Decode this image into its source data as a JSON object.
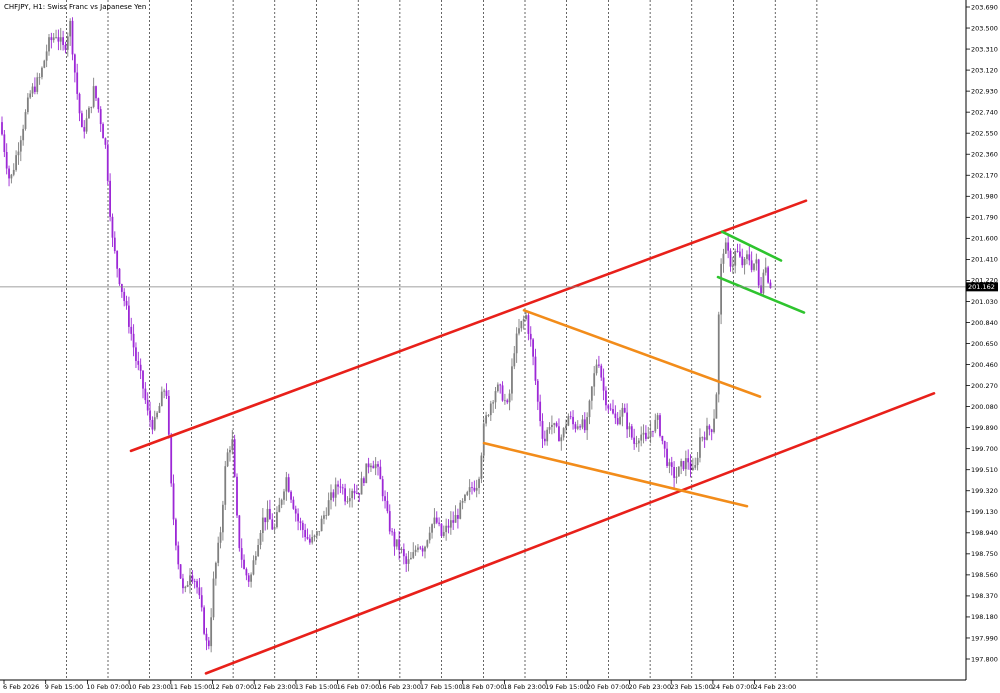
{
  "chart_data": {
    "type": "candlestick",
    "title": "CHFJPY, H1:  Swiss Franc vs Japanese Yen",
    "symbol": "CHFJPY",
    "timeframe": "H1",
    "description": "Swiss Franc vs Japanese Yen",
    "ylim": [
      197.65,
      203.74
    ],
    "y_ticks": [
      "203.690",
      "203.500",
      "203.310",
      "203.120",
      "202.930",
      "202.740",
      "202.550",
      "202.360",
      "202.170",
      "201.980",
      "201.790",
      "201.600",
      "201.410",
      "201.220",
      "201.030",
      "200.840",
      "200.650",
      "200.460",
      "200.270",
      "200.080",
      "199.890",
      "199.700",
      "199.510",
      "199.320",
      "199.130",
      "198.940",
      "198.750",
      "198.560",
      "198.370",
      "198.180",
      "197.990",
      "197.800"
    ],
    "x_ticks": [
      "6 Feb 2026",
      "9 Feb 15:00",
      "10 Feb 07:00",
      "10 Feb 23:00",
      "11 Feb 15:00",
      "12 Feb 07:00",
      "12 Feb 23:00",
      "13 Feb 15:00",
      "16 Feb 07:00",
      "16 Feb 23:00",
      "17 Feb 15:00",
      "18 Feb 07:00",
      "18 Feb 23:00",
      "19 Feb 15:00",
      "20 Feb 07:00",
      "20 Feb 23:00",
      "23 Feb 15:00",
      "24 Feb 07:00",
      "24 Feb 23:00"
    ],
    "current_price": "201.162",
    "bull_color": "#7f7f7f",
    "bear_color": "#9c27d6",
    "grid": "vertical-dashed",
    "price_path": [
      [
        0,
        202.65
      ],
      [
        10,
        202.1
      ],
      [
        20,
        202.5
      ],
      [
        30,
        202.9
      ],
      [
        40,
        203.05
      ],
      [
        48,
        203.35
      ],
      [
        56,
        203.45
      ],
      [
        64,
        203.3
      ],
      [
        70,
        203.55
      ],
      [
        76,
        203.0
      ],
      [
        82,
        202.55
      ],
      [
        88,
        202.7
      ],
      [
        94,
        202.95
      ],
      [
        100,
        202.7
      ],
      [
        106,
        202.4
      ],
      [
        112,
        201.6
      ],
      [
        118,
        201.3
      ],
      [
        124,
        201.05
      ],
      [
        130,
        200.8
      ],
      [
        136,
        200.5
      ],
      [
        142,
        200.3
      ],
      [
        148,
        200.0
      ],
      [
        154,
        199.9
      ],
      [
        160,
        200.1
      ],
      [
        166,
        200.3
      ],
      [
        172,
        199.2
      ],
      [
        178,
        198.7
      ],
      [
        184,
        198.35
      ],
      [
        190,
        198.6
      ],
      [
        196,
        198.5
      ],
      [
        202,
        198.2
      ],
      [
        208,
        197.85
      ],
      [
        214,
        198.55
      ],
      [
        220,
        198.9
      ],
      [
        226,
        199.6
      ],
      [
        232,
        199.8
      ],
      [
        238,
        198.9
      ],
      [
        244,
        198.6
      ],
      [
        250,
        198.5
      ],
      [
        256,
        198.8
      ],
      [
        262,
        199.05
      ],
      [
        268,
        199.1
      ],
      [
        274,
        198.95
      ],
      [
        280,
        199.2
      ],
      [
        286,
        199.45
      ],
      [
        292,
        199.25
      ],
      [
        298,
        199.05
      ],
      [
        304,
        198.95
      ],
      [
        310,
        198.85
      ],
      [
        316,
        198.9
      ],
      [
        322,
        199.05
      ],
      [
        328,
        199.2
      ],
      [
        334,
        199.3
      ],
      [
        340,
        199.4
      ],
      [
        346,
        199.25
      ],
      [
        352,
        199.35
      ],
      [
        358,
        199.3
      ],
      [
        364,
        199.45
      ],
      [
        370,
        199.6
      ],
      [
        376,
        199.55
      ],
      [
        382,
        199.35
      ],
      [
        388,
        199.05
      ],
      [
        394,
        198.85
      ],
      [
        400,
        198.8
      ],
      [
        406,
        198.65
      ],
      [
        412,
        198.7
      ],
      [
        418,
        198.85
      ],
      [
        424,
        198.8
      ],
      [
        430,
        199.0
      ],
      [
        436,
        199.05
      ],
      [
        442,
        198.9
      ],
      [
        448,
        199.0
      ],
      [
        454,
        199.05
      ],
      [
        460,
        199.15
      ],
      [
        466,
        199.25
      ],
      [
        472,
        199.35
      ],
      [
        478,
        199.4
      ],
      [
        484,
        199.9
      ],
      [
        490,
        200.1
      ],
      [
        496,
        200.25
      ],
      [
        502,
        200.2
      ],
      [
        508,
        200.05
      ],
      [
        514,
        200.6
      ],
      [
        520,
        200.8
      ],
      [
        526,
        200.9
      ],
      [
        532,
        200.6
      ],
      [
        538,
        200.1
      ],
      [
        544,
        199.75
      ],
      [
        550,
        199.95
      ],
      [
        556,
        199.85
      ],
      [
        562,
        199.8
      ],
      [
        568,
        200.0
      ],
      [
        574,
        199.9
      ],
      [
        580,
        199.95
      ],
      [
        586,
        199.85
      ],
      [
        592,
        200.25
      ],
      [
        598,
        200.55
      ],
      [
        604,
        200.2
      ],
      [
        610,
        200.05
      ],
      [
        616,
        199.95
      ],
      [
        622,
        200.05
      ],
      [
        628,
        199.9
      ],
      [
        634,
        199.75
      ],
      [
        640,
        199.85
      ],
      [
        646,
        199.75
      ],
      [
        652,
        199.9
      ],
      [
        658,
        199.95
      ],
      [
        664,
        199.7
      ],
      [
        670,
        199.5
      ],
      [
        676,
        199.45
      ],
      [
        682,
        199.55
      ],
      [
        688,
        199.6
      ],
      [
        694,
        199.45
      ],
      [
        700,
        199.8
      ],
      [
        706,
        199.85
      ],
      [
        712,
        199.9
      ],
      [
        716,
        200.1
      ],
      [
        720,
        201.25
      ],
      [
        724,
        201.55
      ],
      [
        728,
        201.45
      ],
      [
        732,
        201.35
      ],
      [
        736,
        201.5
      ],
      [
        740,
        201.4
      ],
      [
        744,
        201.35
      ],
      [
        748,
        201.45
      ],
      [
        752,
        201.35
      ],
      [
        756,
        201.4
      ],
      [
        760,
        201.05
      ],
      [
        764,
        201.4
      ],
      [
        768,
        201.25
      ],
      [
        772,
        201.15
      ]
    ],
    "trend_lines": [
      {
        "color": "#e8201a",
        "from": [
          131,
          199.68
        ],
        "to": [
          806,
          201.94
        ]
      },
      {
        "color": "#e8201a",
        "from": [
          206,
          197.67
        ],
        "to": [
          934,
          200.2
        ]
      },
      {
        "color": "#f28c1a",
        "from": [
          524,
          200.95
        ],
        "to": [
          760,
          200.17
        ]
      },
      {
        "color": "#f28c1a",
        "from": [
          484,
          199.75
        ],
        "to": [
          747,
          199.18
        ]
      },
      {
        "color": "#2ec42e",
        "from": [
          722,
          201.66
        ],
        "to": [
          781,
          201.4
        ]
      },
      {
        "color": "#2ec42e",
        "from": [
          718,
          201.25
        ],
        "to": [
          804,
          200.93
        ]
      }
    ]
  }
}
